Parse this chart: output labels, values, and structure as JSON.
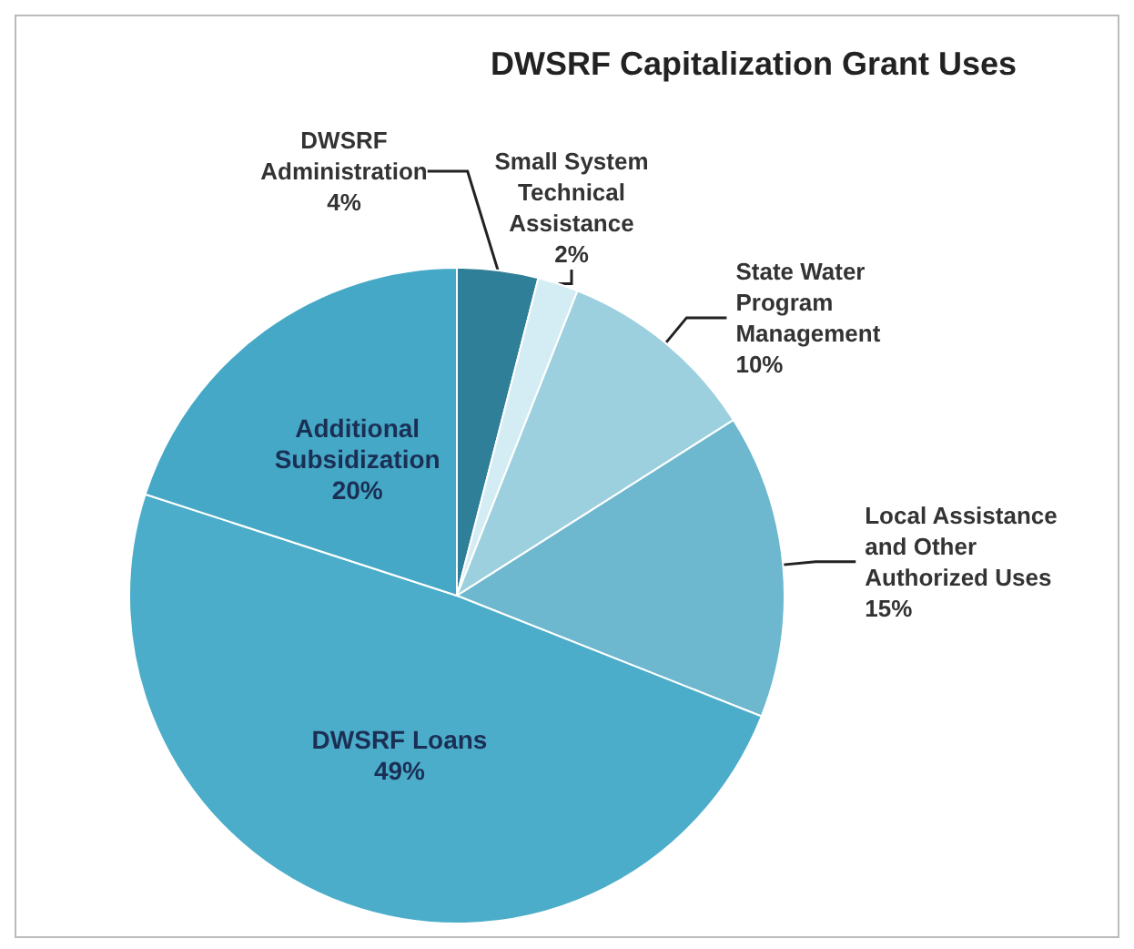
{
  "chart_data": {
    "type": "pie",
    "title": "DWSRF Capitalization Grant Uses",
    "categories": [
      "DWSRF\nAdministration",
      "Small System\nTechnical\nAssistance",
      "State Water\nProgram\nManagement",
      "Local Assistance\nand Other\nAuthorized Uses",
      "DWSRF Loans",
      "Additional\nSubsidization"
    ],
    "values": [
      4,
      2,
      10,
      15,
      49,
      20
    ],
    "colors": [
      "#2f7f98",
      "#d4edf4",
      "#9dd0df",
      "#6db8cf",
      "#4badca",
      "#45a8c6"
    ],
    "value_labels": [
      "4%",
      "2%",
      "10%",
      "15%",
      "49%",
      "20%"
    ],
    "legend": false
  }
}
